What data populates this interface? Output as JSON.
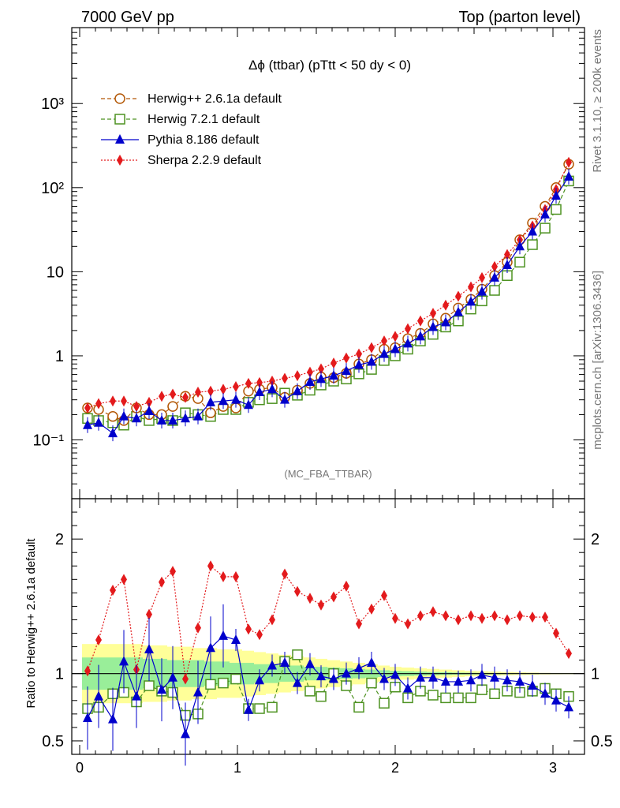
{
  "header": {
    "left": "7000 GeV pp",
    "right": "Top (parton level)"
  },
  "side_labels": {
    "rivet": "Rivet 3.1.10, ≥ 200k events",
    "mcplots": "mcplots.cern.ch [arXiv:1306.3436]"
  },
  "chart_data": {
    "type": "line",
    "title": "Δϕ (ttbar) (pTtt < 50 dy < 0)",
    "watermark": "(MC_FBA_TTBAR)",
    "xlabel": "",
    "ylabel": "",
    "ratio_ylabel": "Ratio to Herwig++ 2.6.1a default",
    "xlim": [
      -0.05,
      3.2
    ],
    "ylim": [
      0.02,
      8000
    ],
    "yscale": "log",
    "ratio_ylim": [
      0.4,
      2.3
    ],
    "x_ticks": [
      "0",
      "1",
      "2",
      "3"
    ],
    "y_ticks": [
      "10⁻¹",
      "1",
      "10",
      "10²",
      "10³"
    ],
    "ratio_ticks": [
      "0.5",
      "1",
      "2"
    ],
    "legend_position": "top-left",
    "x": [
      0.05,
      0.12,
      0.21,
      0.28,
      0.36,
      0.44,
      0.52,
      0.59,
      0.67,
      0.75,
      0.83,
      0.91,
      0.99,
      1.07,
      1.14,
      1.22,
      1.3,
      1.38,
      1.46,
      1.53,
      1.61,
      1.69,
      1.77,
      1.85,
      1.93,
      2.0,
      2.08,
      2.16,
      2.24,
      2.32,
      2.4,
      2.48,
      2.55,
      2.63,
      2.71,
      2.79,
      2.87,
      2.95,
      3.02,
      3.1
    ],
    "series": [
      {
        "name": "Herwig++ 2.6.1a default",
        "color": "#b35806",
        "marker": "open-circle",
        "line": "dashed",
        "values": [
          0.24,
          0.23,
          0.19,
          0.17,
          0.24,
          0.2,
          0.2,
          0.25,
          0.33,
          0.31,
          0.21,
          0.25,
          0.24,
          0.38,
          0.4,
          0.42,
          0.32,
          0.39,
          0.47,
          0.56,
          0.55,
          0.62,
          0.8,
          0.9,
          1.2,
          1.25,
          1.6,
          1.85,
          2.4,
          2.8,
          3.7,
          4.7,
          6.2,
          9.0,
          13.0,
          24.0,
          38.0,
          60.0,
          100.0,
          190.0
        ],
        "ratio": [
          1.0,
          1.0,
          1.0,
          1.0,
          1.0,
          1.0,
          1.0,
          1.0,
          1.0,
          1.0,
          1.0,
          1.0,
          1.0,
          1.0,
          1.0,
          1.0,
          1.0,
          1.0,
          1.0,
          1.0,
          1.0,
          1.0,
          1.0,
          1.0,
          1.0,
          1.0,
          1.0,
          1.0,
          1.0,
          1.0,
          1.0,
          1.0,
          1.0,
          1.0,
          1.0,
          1.0,
          1.0,
          1.0,
          1.0,
          1.0
        ]
      },
      {
        "name": "Herwig 7.2.1 default",
        "color": "#4d9221",
        "marker": "open-square",
        "line": "dashed",
        "values": [
          0.18,
          0.17,
          0.16,
          0.15,
          0.19,
          0.17,
          0.18,
          0.17,
          0.21,
          0.2,
          0.19,
          0.23,
          0.23,
          0.28,
          0.3,
          0.31,
          0.36,
          0.34,
          0.39,
          0.45,
          0.5,
          0.53,
          0.61,
          0.69,
          0.88,
          1.0,
          1.2,
          1.5,
          1.8,
          2.2,
          2.6,
          3.6,
          4.5,
          6.0,
          9.0,
          13.0,
          21.0,
          33.0,
          55.0,
          120.0
        ],
        "ratio": [
          0.74,
          0.75,
          0.85,
          0.86,
          0.79,
          0.91,
          0.87,
          0.86,
          0.69,
          0.7,
          0.92,
          0.93,
          0.96,
          0.74,
          0.74,
          0.75,
          1.09,
          1.14,
          0.87,
          0.83,
          1.0,
          0.91,
          0.75,
          0.93,
          0.78,
          0.9,
          0.82,
          0.87,
          0.84,
          0.82,
          0.82,
          0.82,
          0.88,
          0.85,
          0.87,
          0.86,
          0.87,
          0.89,
          0.85,
          0.83
        ]
      },
      {
        "name": "Pythia 8.186 default",
        "color": "#0000cc",
        "marker": "filled-triangle",
        "line": "solid",
        "values": [
          0.15,
          0.16,
          0.12,
          0.19,
          0.18,
          0.22,
          0.17,
          0.17,
          0.18,
          0.19,
          0.28,
          0.29,
          0.3,
          0.26,
          0.37,
          0.4,
          0.3,
          0.38,
          0.49,
          0.53,
          0.58,
          0.66,
          0.78,
          0.85,
          1.05,
          1.2,
          1.4,
          1.7,
          2.2,
          2.5,
          3.3,
          4.4,
          5.8,
          8.5,
          12.0,
          20.0,
          30.0,
          48.0,
          80.0,
          135.0
        ],
        "ratio": [
          0.67,
          0.83,
          0.66,
          1.09,
          0.83,
          1.18,
          0.88,
          0.97,
          0.55,
          0.86,
          1.19,
          1.28,
          1.25,
          0.73,
          0.95,
          1.06,
          1.08,
          0.93,
          1.07,
          0.98,
          0.96,
          1.0,
          1.04,
          1.08,
          0.96,
          0.99,
          0.89,
          0.97,
          0.97,
          0.94,
          0.94,
          0.95,
          0.99,
          0.97,
          0.95,
          0.94,
          0.91,
          0.85,
          0.8,
          0.75
        ]
      },
      {
        "name": "Sherpa 2.2.9 default",
        "color": "#e31a1c",
        "marker": "filled-diamond",
        "line": "dotted",
        "values": [
          0.24,
          0.27,
          0.29,
          0.29,
          0.25,
          0.28,
          0.33,
          0.35,
          0.32,
          0.37,
          0.38,
          0.4,
          0.43,
          0.47,
          0.48,
          0.5,
          0.54,
          0.58,
          0.64,
          0.7,
          0.82,
          0.94,
          1.05,
          1.25,
          1.5,
          1.7,
          2.1,
          2.6,
          3.2,
          4.0,
          5.1,
          6.6,
          8.5,
          11.5,
          16.0,
          24.0,
          35.0,
          55.0,
          95.0,
          200.0
        ],
        "ratio": [
          1.02,
          1.25,
          1.62,
          1.7,
          1.03,
          1.44,
          1.68,
          1.76,
          0.96,
          1.34,
          1.8,
          1.72,
          1.72,
          1.33,
          1.29,
          1.4,
          1.74,
          1.61,
          1.56,
          1.51,
          1.57,
          1.65,
          1.37,
          1.48,
          1.58,
          1.41,
          1.37,
          1.43,
          1.46,
          1.43,
          1.4,
          1.43,
          1.41,
          1.43,
          1.4,
          1.43,
          1.42,
          1.42,
          1.3,
          1.15
        ]
      }
    ],
    "ratio_bands": {
      "yellow_halfwidth": [
        0.22,
        0.22,
        0.22,
        0.22,
        0.22,
        0.21,
        0.21,
        0.2,
        0.2,
        0.19,
        0.19,
        0.18,
        0.18,
        0.17,
        0.16,
        0.15,
        0.14,
        0.13,
        0.12,
        0.11,
        0.1,
        0.09,
        0.08,
        0.07,
        0.06,
        0.05,
        0.045,
        0.04,
        0.035,
        0.03,
        0.025,
        0.02,
        0.018,
        0.015,
        0.012,
        0.01,
        0.008,
        0.006,
        0.005,
        0.004
      ],
      "green_halfwidth": [
        0.12,
        0.12,
        0.12,
        0.12,
        0.12,
        0.11,
        0.11,
        0.1,
        0.1,
        0.1,
        0.09,
        0.09,
        0.08,
        0.08,
        0.07,
        0.07,
        0.06,
        0.06,
        0.05,
        0.05,
        0.045,
        0.04,
        0.035,
        0.03,
        0.025,
        0.02,
        0.018,
        0.015,
        0.012,
        0.01,
        0.008,
        0.007,
        0.006,
        0.005,
        0.004,
        0.003,
        0.003,
        0.002,
        0.002,
        0.002
      ]
    }
  }
}
